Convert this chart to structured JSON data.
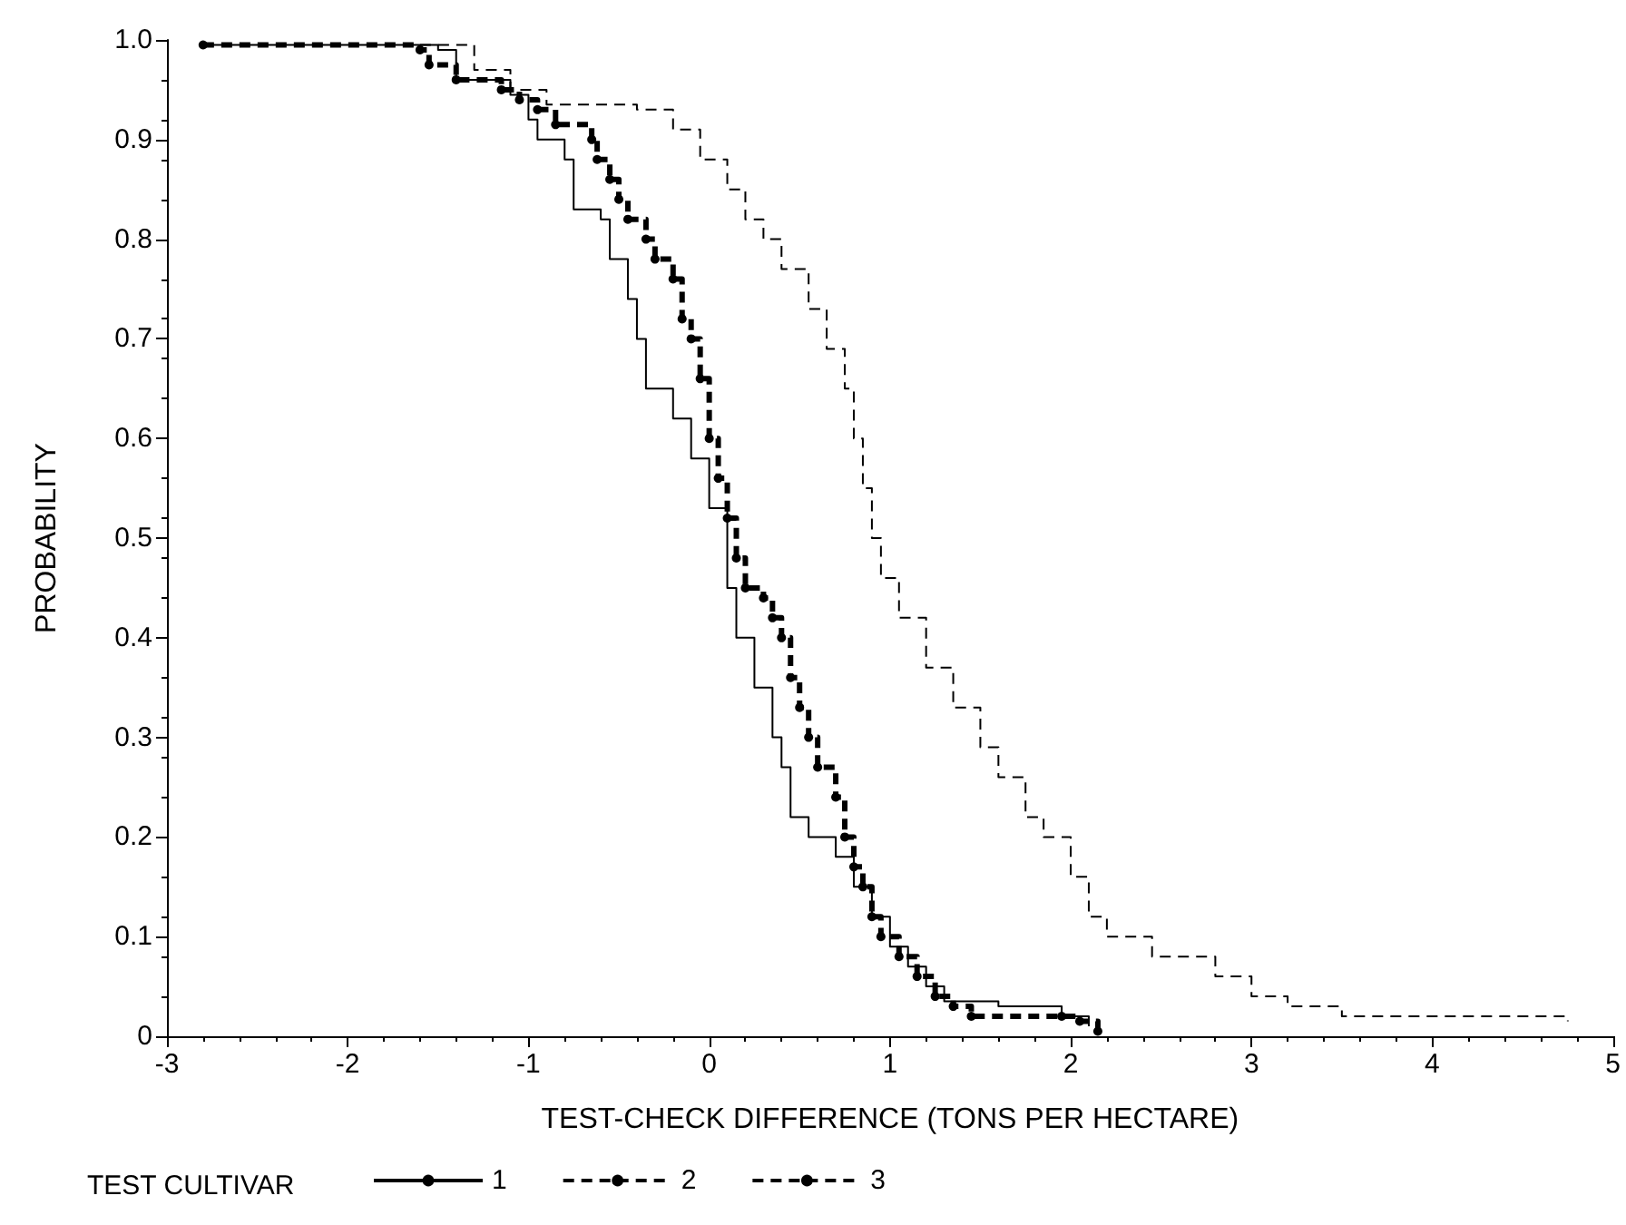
{
  "chart_data": {
    "type": "step",
    "xlabel": "TEST-CHECK DIFFERENCE (TONS PER HECTARE)",
    "ylabel": "PROBABILITY",
    "legend_title": "TEST CULTIVAR",
    "legend": "bottom",
    "grid": false,
    "xlim": [
      -3,
      5
    ],
    "xticks": [
      -3,
      -2,
      -1,
      0,
      1,
      2,
      3,
      4,
      5
    ],
    "ylim": [
      0,
      1
    ],
    "yticks": [
      0,
      0.1,
      0.2,
      0.3,
      0.4,
      0.5,
      0.6,
      0.7,
      0.8,
      0.9,
      {
        "value": 1,
        "label": "1.0"
      }
    ],
    "series": [
      {
        "name": "1",
        "color": "#000000",
        "line_style": "solid",
        "marker": "none",
        "x": [
          -2.8,
          -1.5,
          -1.4,
          -1.1,
          -1.0,
          -0.95,
          -0.8,
          -0.75,
          -0.6,
          -0.55,
          -0.45,
          -0.4,
          -0.35,
          -0.2,
          -0.1,
          0,
          0.1,
          0.15,
          0.25,
          0.35,
          0.4,
          0.45,
          0.55,
          0.7,
          0.8,
          0.9,
          1.0,
          1.1,
          1.2,
          1.3,
          1.6,
          1.95,
          2.1
        ],
        "values": [
          0.995,
          0.99,
          0.96,
          0.945,
          0.92,
          0.9,
          0.88,
          0.83,
          0.82,
          0.78,
          0.74,
          0.7,
          0.65,
          0.62,
          0.58,
          0.53,
          0.45,
          0.4,
          0.35,
          0.3,
          0.27,
          0.22,
          0.2,
          0.18,
          0.15,
          0.12,
          0.09,
          0.07,
          0.05,
          0.035,
          0.03,
          0.02,
          0.01
        ]
      },
      {
        "name": "2",
        "color": "#000000",
        "line_style": "dashed",
        "marker": "none",
        "x": [
          -1.6,
          -1.3,
          -1.1,
          -0.9,
          -0.4,
          -0.2,
          -0.05,
          0.1,
          0.2,
          0.3,
          0.4,
          0.55,
          0.65,
          0.75,
          0.8,
          0.85,
          0.9,
          0.95,
          1.05,
          1.2,
          1.35,
          1.5,
          1.6,
          1.75,
          1.85,
          2.0,
          2.1,
          2.2,
          2.45,
          2.8,
          3.0,
          3.2,
          3.5,
          4.75
        ],
        "values": [
          0.995,
          0.97,
          0.95,
          0.935,
          0.93,
          0.91,
          0.88,
          0.85,
          0.82,
          0.8,
          0.77,
          0.73,
          0.69,
          0.65,
          0.6,
          0.55,
          0.5,
          0.46,
          0.42,
          0.37,
          0.33,
          0.29,
          0.26,
          0.22,
          0.2,
          0.16,
          0.12,
          0.1,
          0.08,
          0.06,
          0.04,
          0.03,
          0.02,
          0.015
        ]
      },
      {
        "name": "3",
        "color": "#000000",
        "line_style": "dashed",
        "marker": "circle",
        "x": [
          -2.8,
          -1.6,
          -1.55,
          -1.4,
          -1.15,
          -1.05,
          -0.95,
          -0.85,
          -0.65,
          -0.62,
          -0.55,
          -0.5,
          -0.45,
          -0.35,
          -0.3,
          -0.2,
          -0.15,
          -0.1,
          -0.05,
          0,
          0.05,
          0.1,
          0.15,
          0.2,
          0.3,
          0.35,
          0.4,
          0.45,
          0.5,
          0.55,
          0.6,
          0.7,
          0.75,
          0.8,
          0.85,
          0.9,
          0.95,
          1.05,
          1.15,
          1.25,
          1.35,
          1.45,
          1.95,
          2.05,
          2.15
        ],
        "values": [
          0.995,
          0.99,
          0.975,
          0.96,
          0.95,
          0.94,
          0.93,
          0.915,
          0.9,
          0.88,
          0.86,
          0.84,
          0.82,
          0.8,
          0.78,
          0.76,
          0.72,
          0.7,
          0.66,
          0.6,
          0.56,
          0.52,
          0.48,
          0.45,
          0.44,
          0.42,
          0.4,
          0.36,
          0.33,
          0.3,
          0.27,
          0.24,
          0.2,
          0.17,
          0.15,
          0.12,
          0.1,
          0.08,
          0.06,
          0.04,
          0.03,
          0.02,
          0.02,
          0.015,
          0.005
        ]
      }
    ]
  }
}
